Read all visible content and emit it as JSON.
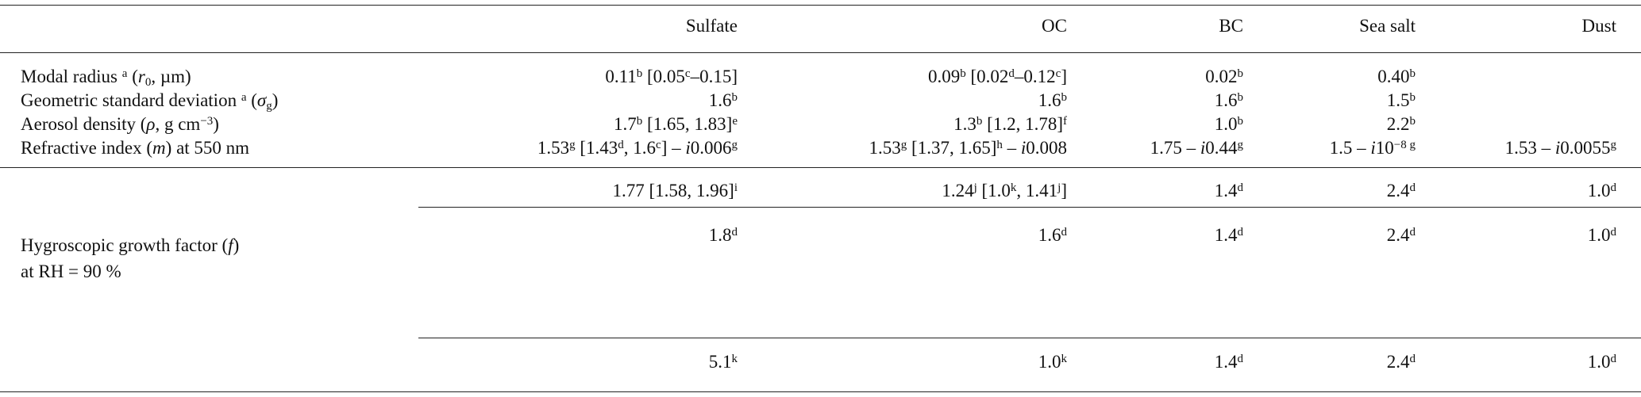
{
  "table": {
    "header": [
      "Sulfate",
      "OC",
      "BC",
      "Sea salt",
      "Dust"
    ],
    "rows": [
      {
        "label": [
          "Modal radius ",
          {
            "sup": "a"
          },
          " (",
          {
            "it": "r"
          },
          {
            "sub": "0"
          },
          ", µm)"
        ],
        "cells": [
          [
            "0.11",
            {
              "sup": "b"
            },
            " [0.05",
            {
              "sup": "c"
            },
            "–0.15]"
          ],
          [
            "0.09",
            {
              "sup": "b"
            },
            " [0.02",
            {
              "sup": "d"
            },
            "–0.12",
            {
              "sup": "c"
            },
            "]"
          ],
          [
            "0.02",
            {
              "sup": "b"
            }
          ],
          [
            "0.40",
            {
              "sup": "b"
            }
          ],
          []
        ]
      },
      {
        "label": [
          "Geometric standard deviation ",
          {
            "sup": "a"
          },
          " (",
          {
            "it": "σ"
          },
          {
            "sub": "g"
          },
          ")"
        ],
        "cells": [
          [
            "1.6",
            {
              "sup": "b"
            }
          ],
          [
            "1.6",
            {
              "sup": "b"
            }
          ],
          [
            "1.6",
            {
              "sup": "b"
            }
          ],
          [
            "1.5",
            {
              "sup": "b"
            }
          ],
          []
        ]
      },
      {
        "label": [
          "Aerosol density (",
          {
            "it": "ρ"
          },
          ", g cm",
          {
            "sup": "−3"
          },
          ")"
        ],
        "cells": [
          [
            "1.7",
            {
              "sup": "b"
            },
            " [1.65, 1.83]",
            {
              "sup": "e"
            }
          ],
          [
            "1.3",
            {
              "sup": "b"
            },
            " [1.2, 1.78]",
            {
              "sup": "f"
            }
          ],
          [
            "1.0",
            {
              "sup": "b"
            }
          ],
          [
            "2.2",
            {
              "sup": "b"
            }
          ],
          []
        ]
      },
      {
        "label": [
          "Refractive index (",
          {
            "it": "m"
          },
          ") at 550 nm"
        ],
        "cells": [
          [
            "1.53",
            {
              "sup": "g"
            },
            " [1.43",
            {
              "sup": "d"
            },
            ", 1.6",
            {
              "sup": "c"
            },
            "] – ",
            {
              "it": "i"
            },
            "0.006",
            {
              "sup": "g"
            }
          ],
          [
            "1.53",
            {
              "sup": "g"
            },
            " [1.37, 1.65]",
            {
              "sup": "h"
            },
            " – ",
            {
              "it": "i"
            },
            "0.008"
          ],
          [
            "1.75 – ",
            {
              "it": "i"
            },
            "0.44",
            {
              "sup": "g"
            }
          ],
          [
            "1.5 – ",
            {
              "it": "i"
            },
            "10",
            {
              "sup": "−8 g"
            }
          ],
          [
            "1.53 – ",
            {
              "it": "i"
            },
            "0.0055",
            {
              "sup": "g"
            }
          ]
        ]
      }
    ],
    "hygroscopic": {
      "label": [
        [
          "Hygroscopic growth factor (",
          {
            "it": "f"
          },
          ")"
        ],
        [
          "at RH = 90 %"
        ]
      ],
      "rows": [
        [
          [
            "1.77 [1.58, 1.96]",
            {
              "sup": "i"
            }
          ],
          [
            "1.24",
            {
              "sup": "j"
            },
            " [1.0",
            {
              "sup": "k"
            },
            ", 1.41",
            {
              "sup": "j"
            },
            "]"
          ],
          [
            "1.4",
            {
              "sup": "d"
            }
          ],
          [
            "2.4",
            {
              "sup": "d"
            }
          ],
          [
            "1.0",
            {
              "sup": "d"
            }
          ]
        ],
        [
          [
            "1.8",
            {
              "sup": "d"
            }
          ],
          [
            "1.6",
            {
              "sup": "d"
            }
          ],
          [
            "1.4",
            {
              "sup": "d"
            }
          ],
          [
            "2.4",
            {
              "sup": "d"
            }
          ],
          [
            "1.0",
            {
              "sup": "d"
            }
          ]
        ],
        [
          [
            "5.1",
            {
              "sup": "k"
            }
          ],
          [
            "1.0",
            {
              "sup": "k"
            }
          ],
          [
            "1.4",
            {
              "sup": "d"
            }
          ],
          [
            "2.4",
            {
              "sup": "d"
            }
          ],
          [
            "1.0",
            {
              "sup": "d"
            }
          ]
        ]
      ]
    }
  }
}
